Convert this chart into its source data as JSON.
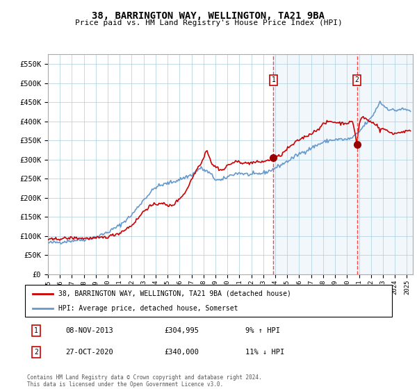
{
  "title": "38, BARRINGTON WAY, WELLINGTON, TA21 9BA",
  "subtitle": "Price paid vs. HM Land Registry's House Price Index (HPI)",
  "ylim": [
    0,
    575000
  ],
  "yticks": [
    0,
    50000,
    100000,
    150000,
    200000,
    250000,
    300000,
    350000,
    400000,
    450000,
    500000,
    550000
  ],
  "ytick_labels": [
    "£0",
    "£50K",
    "£100K",
    "£150K",
    "£200K",
    "£250K",
    "£300K",
    "£350K",
    "£400K",
    "£450K",
    "£500K",
    "£550K"
  ],
  "hpi_color": "#6699cc",
  "price_color": "#cc0000",
  "marker_color": "#990000",
  "dashed_color": "#ff4444",
  "bg_shade_color": "#cce0f5",
  "sale1_x": 2013.85,
  "sale1_y": 304995,
  "sale1_label": "1",
  "sale1_date": "08-NOV-2013",
  "sale1_price": "£304,995",
  "sale1_hpi": "9% ↑ HPI",
  "sale2_x": 2020.83,
  "sale2_y": 340000,
  "sale2_label": "2",
  "sale2_date": "27-OCT-2020",
  "sale2_price": "£340,000",
  "sale2_hpi": "11% ↓ HPI",
  "legend1": "38, BARRINGTON WAY, WELLINGTON, TA21 9BA (detached house)",
  "legend2": "HPI: Average price, detached house, Somerset",
  "footer": "Contains HM Land Registry data © Crown copyright and database right 2024.\nThis data is licensed under the Open Government Licence v3.0.",
  "xmin": 1995.0,
  "xmax": 2025.5,
  "xtick_years": [
    1995,
    1996,
    1997,
    1998,
    1999,
    2000,
    2001,
    2002,
    2003,
    2004,
    2005,
    2006,
    2007,
    2008,
    2009,
    2010,
    2011,
    2012,
    2013,
    2014,
    2015,
    2016,
    2017,
    2018,
    2019,
    2020,
    2021,
    2022,
    2023,
    2024,
    2025
  ],
  "hpi_keypoints": [
    [
      1995.0,
      82000
    ],
    [
      1996.0,
      84000
    ],
    [
      1997.0,
      88000
    ],
    [
      1998.0,
      91000
    ],
    [
      1999.0,
      97000
    ],
    [
      2000.0,
      110000
    ],
    [
      2001.0,
      128000
    ],
    [
      2002.0,
      155000
    ],
    [
      2003.0,
      195000
    ],
    [
      2004.0,
      228000
    ],
    [
      2005.0,
      238000
    ],
    [
      2005.5,
      242000
    ],
    [
      2006.0,
      248000
    ],
    [
      2007.0,
      260000
    ],
    [
      2007.75,
      278000
    ],
    [
      2008.5,
      265000
    ],
    [
      2009.0,
      248000
    ],
    [
      2009.5,
      245000
    ],
    [
      2010.0,
      255000
    ],
    [
      2010.5,
      262000
    ],
    [
      2011.0,
      265000
    ],
    [
      2011.5,
      262000
    ],
    [
      2012.0,
      260000
    ],
    [
      2012.5,
      262000
    ],
    [
      2013.0,
      265000
    ],
    [
      2013.5,
      270000
    ],
    [
      2014.0,
      278000
    ],
    [
      2015.0,
      295000
    ],
    [
      2015.5,
      305000
    ],
    [
      2016.0,
      315000
    ],
    [
      2016.5,
      322000
    ],
    [
      2017.0,
      330000
    ],
    [
      2017.5,
      338000
    ],
    [
      2018.0,
      345000
    ],
    [
      2018.5,
      350000
    ],
    [
      2019.0,
      352000
    ],
    [
      2019.5,
      353000
    ],
    [
      2020.0,
      352000
    ],
    [
      2020.5,
      358000
    ],
    [
      2021.0,
      372000
    ],
    [
      2021.5,
      392000
    ],
    [
      2022.0,
      408000
    ],
    [
      2022.5,
      435000
    ],
    [
      2022.75,
      452000
    ],
    [
      2023.0,
      442000
    ],
    [
      2023.5,
      432000
    ],
    [
      2024.0,
      428000
    ],
    [
      2024.5,
      432000
    ],
    [
      2025.0,
      430000
    ],
    [
      2025.3,
      428000
    ]
  ],
  "price_keypoints": [
    [
      1995.0,
      90000
    ],
    [
      1996.0,
      93000
    ],
    [
      1997.0,
      95000
    ],
    [
      1998.0,
      94000
    ],
    [
      1999.0,
      94000
    ],
    [
      2000.0,
      98000
    ],
    [
      2001.0,
      108000
    ],
    [
      2001.5,
      118000
    ],
    [
      2002.0,
      128000
    ],
    [
      2002.5,
      145000
    ],
    [
      2003.0,
      165000
    ],
    [
      2003.5,
      178000
    ],
    [
      2004.0,
      182000
    ],
    [
      2004.5,
      188000
    ],
    [
      2005.0,
      178000
    ],
    [
      2005.5,
      182000
    ],
    [
      2006.0,
      198000
    ],
    [
      2006.5,
      215000
    ],
    [
      2007.0,
      248000
    ],
    [
      2007.5,
      278000
    ],
    [
      2008.0,
      302000
    ],
    [
      2008.25,
      328000
    ],
    [
      2008.75,
      285000
    ],
    [
      2009.0,
      282000
    ],
    [
      2009.5,
      272000
    ],
    [
      2009.75,
      275000
    ],
    [
      2010.0,
      285000
    ],
    [
      2010.5,
      292000
    ],
    [
      2011.0,
      295000
    ],
    [
      2011.5,
      290000
    ],
    [
      2012.0,
      292000
    ],
    [
      2012.5,
      293000
    ],
    [
      2013.0,
      295000
    ],
    [
      2013.5,
      298000
    ],
    [
      2013.85,
      304995
    ],
    [
      2014.0,
      305000
    ],
    [
      2014.5,
      312000
    ],
    [
      2015.0,
      328000
    ],
    [
      2015.5,
      340000
    ],
    [
      2016.0,
      352000
    ],
    [
      2016.5,
      360000
    ],
    [
      2017.0,
      368000
    ],
    [
      2017.5,
      378000
    ],
    [
      2018.0,
      392000
    ],
    [
      2018.5,
      400000
    ],
    [
      2019.0,
      398000
    ],
    [
      2019.5,
      395000
    ],
    [
      2020.0,
      396000
    ],
    [
      2020.5,
      398000
    ],
    [
      2020.83,
      340000
    ],
    [
      2021.0,
      392000
    ],
    [
      2021.25,
      412000
    ],
    [
      2021.5,
      408000
    ],
    [
      2022.0,
      398000
    ],
    [
      2022.5,
      392000
    ],
    [
      2022.75,
      375000
    ],
    [
      2023.0,
      382000
    ],
    [
      2023.5,
      372000
    ],
    [
      2024.0,
      368000
    ],
    [
      2024.5,
      372000
    ],
    [
      2025.0,
      375000
    ],
    [
      2025.3,
      373000
    ]
  ]
}
